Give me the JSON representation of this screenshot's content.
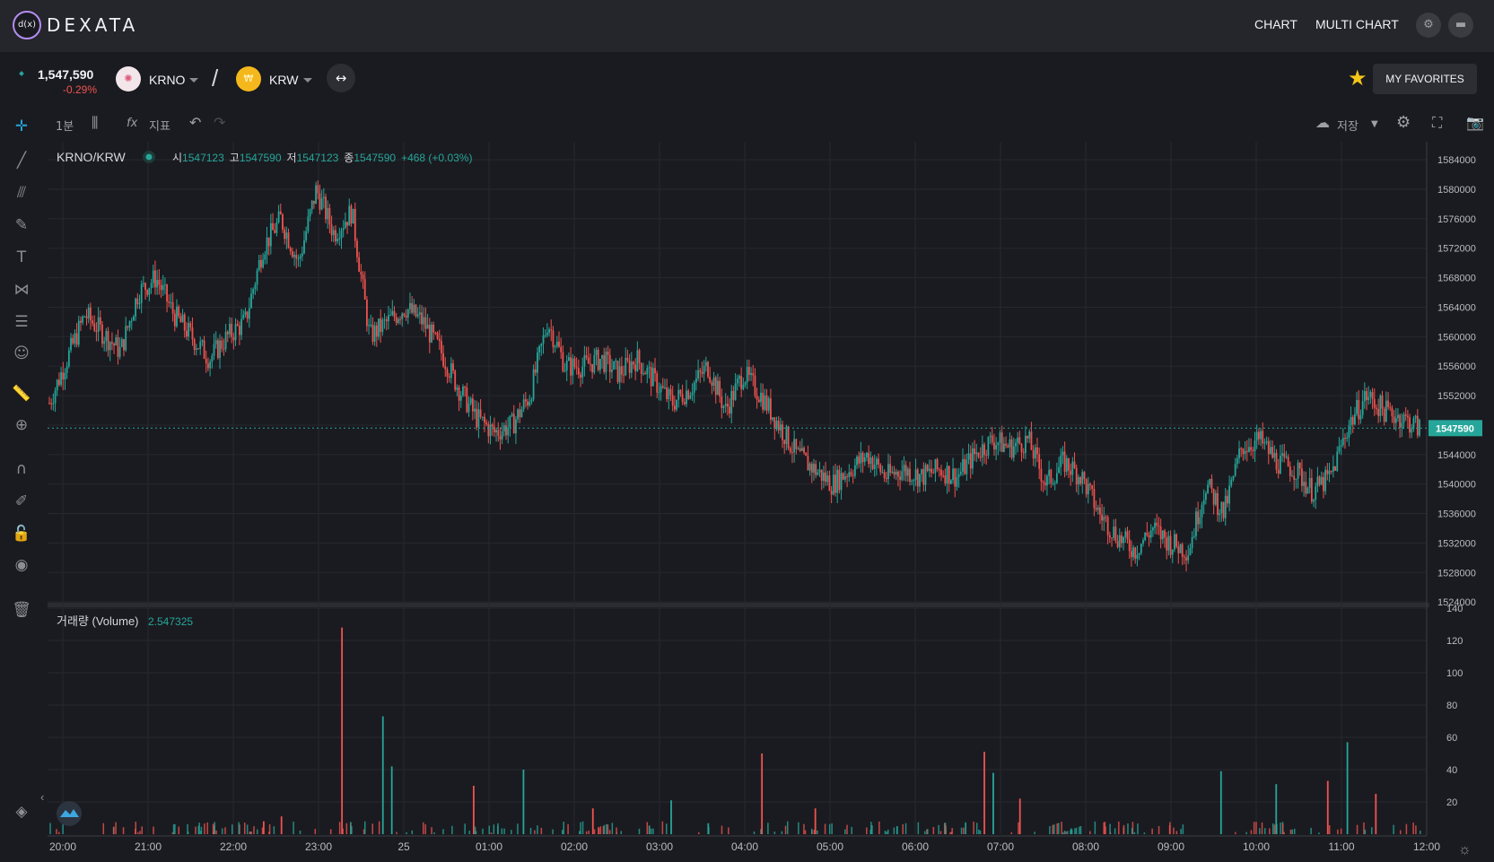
{
  "app": {
    "logo_mark": "d(x)",
    "logo_text": "DEXATA",
    "nav": [
      "CHART",
      "MULTI CHART"
    ],
    "icons": [
      "gear-icon",
      "wallet-icon"
    ]
  },
  "pair": {
    "price": "1,547,590",
    "change": "-0.29%",
    "base": "KRNO",
    "separator": "/",
    "quote": "KRW",
    "swap_icon": "↔",
    "favorites_label": "MY FAVORITES"
  },
  "chart_toolbar": {
    "interval": "1분",
    "indicator_label": "지표",
    "indicator_icon": "fx",
    "save_label": "저장"
  },
  "legend": {
    "symbol": "KRNO/KRW",
    "open_label": "시",
    "open": "1547123",
    "high_label": "고",
    "high": "1547590",
    "low_label": "저",
    "low": "1547123",
    "close_label": "종",
    "close": "1547590",
    "change": "+468 (+0.03%)",
    "volume_label": "거래량 (Volume)",
    "volume_value": "2.547325"
  },
  "colors": {
    "up": "#26a69a",
    "down": "#ef5350",
    "background": "#1a1b20",
    "grid": "#26282e",
    "accent_star": "#f5c518"
  },
  "chart_data": {
    "type": "candlestick",
    "price_axis": {
      "ticks": [
        1584000,
        1580000,
        1576000,
        1572000,
        1568000,
        1564000,
        1560000,
        1556000,
        1552000,
        1548000,
        1544000,
        1540000,
        1536000,
        1532000,
        1528000,
        1524000
      ],
      "range": [
        1523900,
        1586200
      ],
      "last_price": 1547590,
      "last_price_label": "1547590"
    },
    "volume_axis": {
      "ticks": [
        140,
        120,
        100,
        80,
        60,
        40,
        20
      ],
      "range": [
        0,
        140
      ]
    },
    "time_axis": {
      "ticks": [
        "20:00",
        "21:00",
        "22:00",
        "23:00",
        "25",
        "01:00",
        "02:00",
        "03:00",
        "04:00",
        "05:00",
        "06:00",
        "07:00",
        "08:00",
        "09:00",
        "10:00",
        "11:00",
        "12:00"
      ]
    },
    "price_path": [
      [
        0,
        1551000
      ],
      [
        2,
        1563000
      ],
      [
        4,
        1558000
      ],
      [
        5,
        1566000
      ],
      [
        6,
        1568000
      ],
      [
        7,
        1563000
      ],
      [
        8,
        1560000
      ],
      [
        9,
        1557000
      ],
      [
        10,
        1560000
      ],
      [
        11,
        1562000
      ],
      [
        12,
        1572000
      ],
      [
        13,
        1576000
      ],
      [
        14,
        1570000
      ],
      [
        15,
        1580000
      ],
      [
        16,
        1574000
      ],
      [
        17,
        1577000
      ],
      [
        18,
        1560000
      ],
      [
        19,
        1562000
      ],
      [
        20,
        1564000
      ],
      [
        21,
        1562000
      ],
      [
        22,
        1558000
      ],
      [
        23,
        1553000
      ],
      [
        24,
        1549000
      ],
      [
        25,
        1547000
      ],
      [
        26,
        1548000
      ],
      [
        27,
        1552000
      ],
      [
        28,
        1562000
      ],
      [
        29,
        1556000
      ],
      [
        30,
        1556000
      ],
      [
        31,
        1557000
      ],
      [
        32,
        1555000
      ],
      [
        33,
        1557000
      ],
      [
        34,
        1554000
      ],
      [
        35,
        1551000
      ],
      [
        36,
        1553000
      ],
      [
        37,
        1556000
      ],
      [
        38,
        1550000
      ],
      [
        39,
        1555000
      ],
      [
        40,
        1552000
      ],
      [
        41,
        1548000
      ],
      [
        42,
        1544000
      ],
      [
        43,
        1542000
      ],
      [
        44,
        1540000
      ],
      [
        45,
        1542000
      ],
      [
        46,
        1544000
      ],
      [
        47,
        1541000
      ],
      [
        48,
        1542000
      ],
      [
        49,
        1541000
      ],
      [
        50,
        1542000
      ],
      [
        51,
        1541000
      ],
      [
        52,
        1544000
      ],
      [
        53,
        1546000
      ],
      [
        54,
        1545000
      ],
      [
        55,
        1546000
      ],
      [
        56,
        1540000
      ],
      [
        57,
        1543000
      ],
      [
        58,
        1541000
      ],
      [
        59,
        1536000
      ],
      [
        60,
        1533000
      ],
      [
        61,
        1531000
      ],
      [
        62,
        1534000
      ],
      [
        63,
        1532000
      ],
      [
        64,
        1531000
      ],
      [
        65,
        1540000
      ],
      [
        66,
        1536000
      ],
      [
        67,
        1545000
      ],
      [
        68,
        1546000
      ],
      [
        69,
        1543000
      ],
      [
        70,
        1542000
      ],
      [
        71,
        1539000
      ],
      [
        72,
        1541000
      ],
      [
        73,
        1548000
      ],
      [
        74,
        1552000
      ],
      [
        75,
        1550000
      ],
      [
        76,
        1549000
      ],
      [
        77,
        1547590
      ]
    ],
    "volume_spikes": [
      {
        "t": 12,
        "v": 8,
        "dir": "down"
      },
      {
        "t": 13,
        "v": 11,
        "dir": "down"
      },
      {
        "t": 16.4,
        "v": 128,
        "dir": "down"
      },
      {
        "t": 18.7,
        "v": 73,
        "dir": "up"
      },
      {
        "t": 19.2,
        "v": 42,
        "dir": "up"
      },
      {
        "t": 23.8,
        "v": 30,
        "dir": "down"
      },
      {
        "t": 26.6,
        "v": 40,
        "dir": "up"
      },
      {
        "t": 30.5,
        "v": 16,
        "dir": "down"
      },
      {
        "t": 34.9,
        "v": 21,
        "dir": "up"
      },
      {
        "t": 40.0,
        "v": 50,
        "dir": "down"
      },
      {
        "t": 43.0,
        "v": 16,
        "dir": "down"
      },
      {
        "t": 52.5,
        "v": 51,
        "dir": "down"
      },
      {
        "t": 53.0,
        "v": 38,
        "dir": "up"
      },
      {
        "t": 54.5,
        "v": 22,
        "dir": "down"
      },
      {
        "t": 65.8,
        "v": 39,
        "dir": "up"
      },
      {
        "t": 68.9,
        "v": 31,
        "dir": "up"
      },
      {
        "t": 72.9,
        "v": 57,
        "dir": "up"
      },
      {
        "t": 71.8,
        "v": 33,
        "dir": "down"
      },
      {
        "t": 74.5,
        "v": 25,
        "dir": "down"
      }
    ]
  }
}
